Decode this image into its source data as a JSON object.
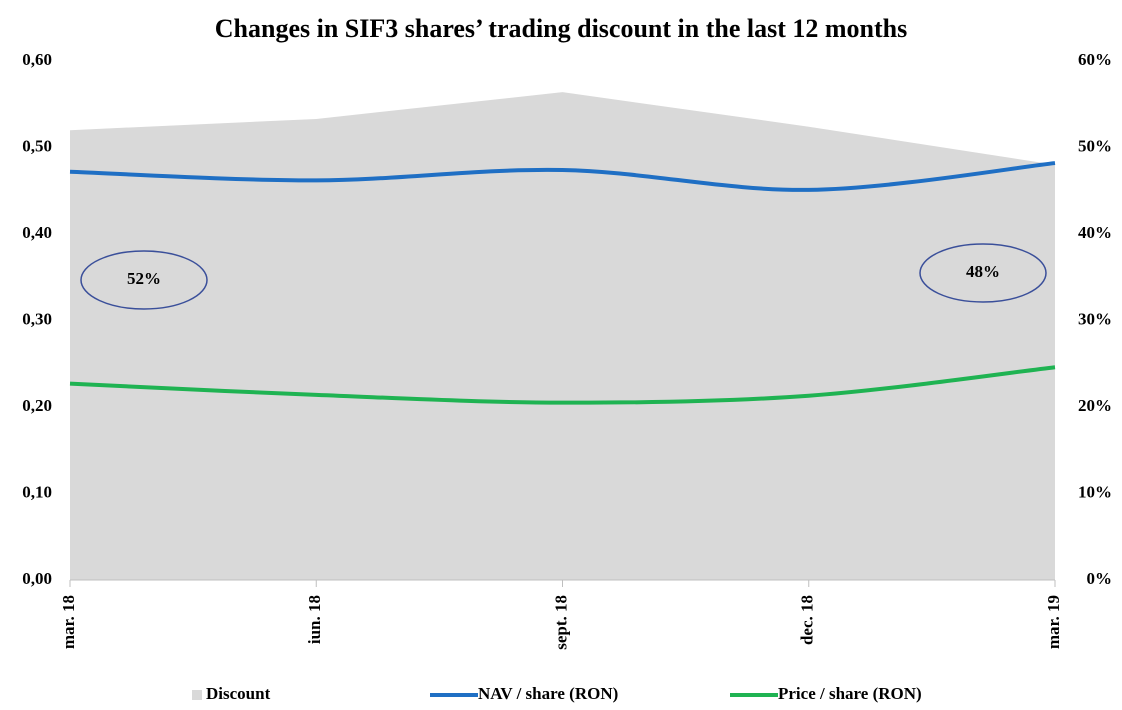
{
  "chart_data": {
    "type": "line",
    "title": "Changes in SIF3 shares’ trading discount in the last 12 months",
    "categories": [
      "mar. 18",
      "iun. 18",
      "sept. 18",
      "dec. 18",
      "mar. 19"
    ],
    "series": [
      {
        "name": "Discount",
        "type": "area",
        "axis": "y2",
        "color": "#d9d9d9",
        "values": [
          52,
          53.3,
          56.4,
          52.4,
          48
        ]
      },
      {
        "name": "NAV / share (RON)",
        "color": "#1f6fc4",
        "values": [
          0.472,
          0.462,
          0.474,
          0.451,
          0.482
        ]
      },
      {
        "name": "Price / share (RON)",
        "color": "#1fb352",
        "values": [
          0.227,
          0.214,
          0.205,
          0.213,
          0.246
        ]
      }
    ],
    "ylim": [
      0,
      0.6
    ],
    "yticks": [
      {
        "value": 0,
        "label": "0,00"
      },
      {
        "value": 0.1,
        "label": "0,10"
      },
      {
        "value": 0.2,
        "label": "0,20"
      },
      {
        "value": 0.3,
        "label": "0,30"
      },
      {
        "value": 0.4,
        "label": "0,40"
      },
      {
        "value": 0.5,
        "label": "0,50"
      },
      {
        "value": 0.6,
        "label": "0,60"
      }
    ],
    "y2lim": [
      0,
      60
    ],
    "y2ticks": [
      {
        "value": 0,
        "label": "0%"
      },
      {
        "value": 10,
        "label": "10%"
      },
      {
        "value": 20,
        "label": "20%"
      },
      {
        "value": 30,
        "label": "30%"
      },
      {
        "value": 40,
        "label": "40%"
      },
      {
        "value": 50,
        "label": "50%"
      },
      {
        "value": 60,
        "label": "60%"
      }
    ],
    "annotations": [
      "52%",
      "48%"
    ],
    "grid": false
  }
}
